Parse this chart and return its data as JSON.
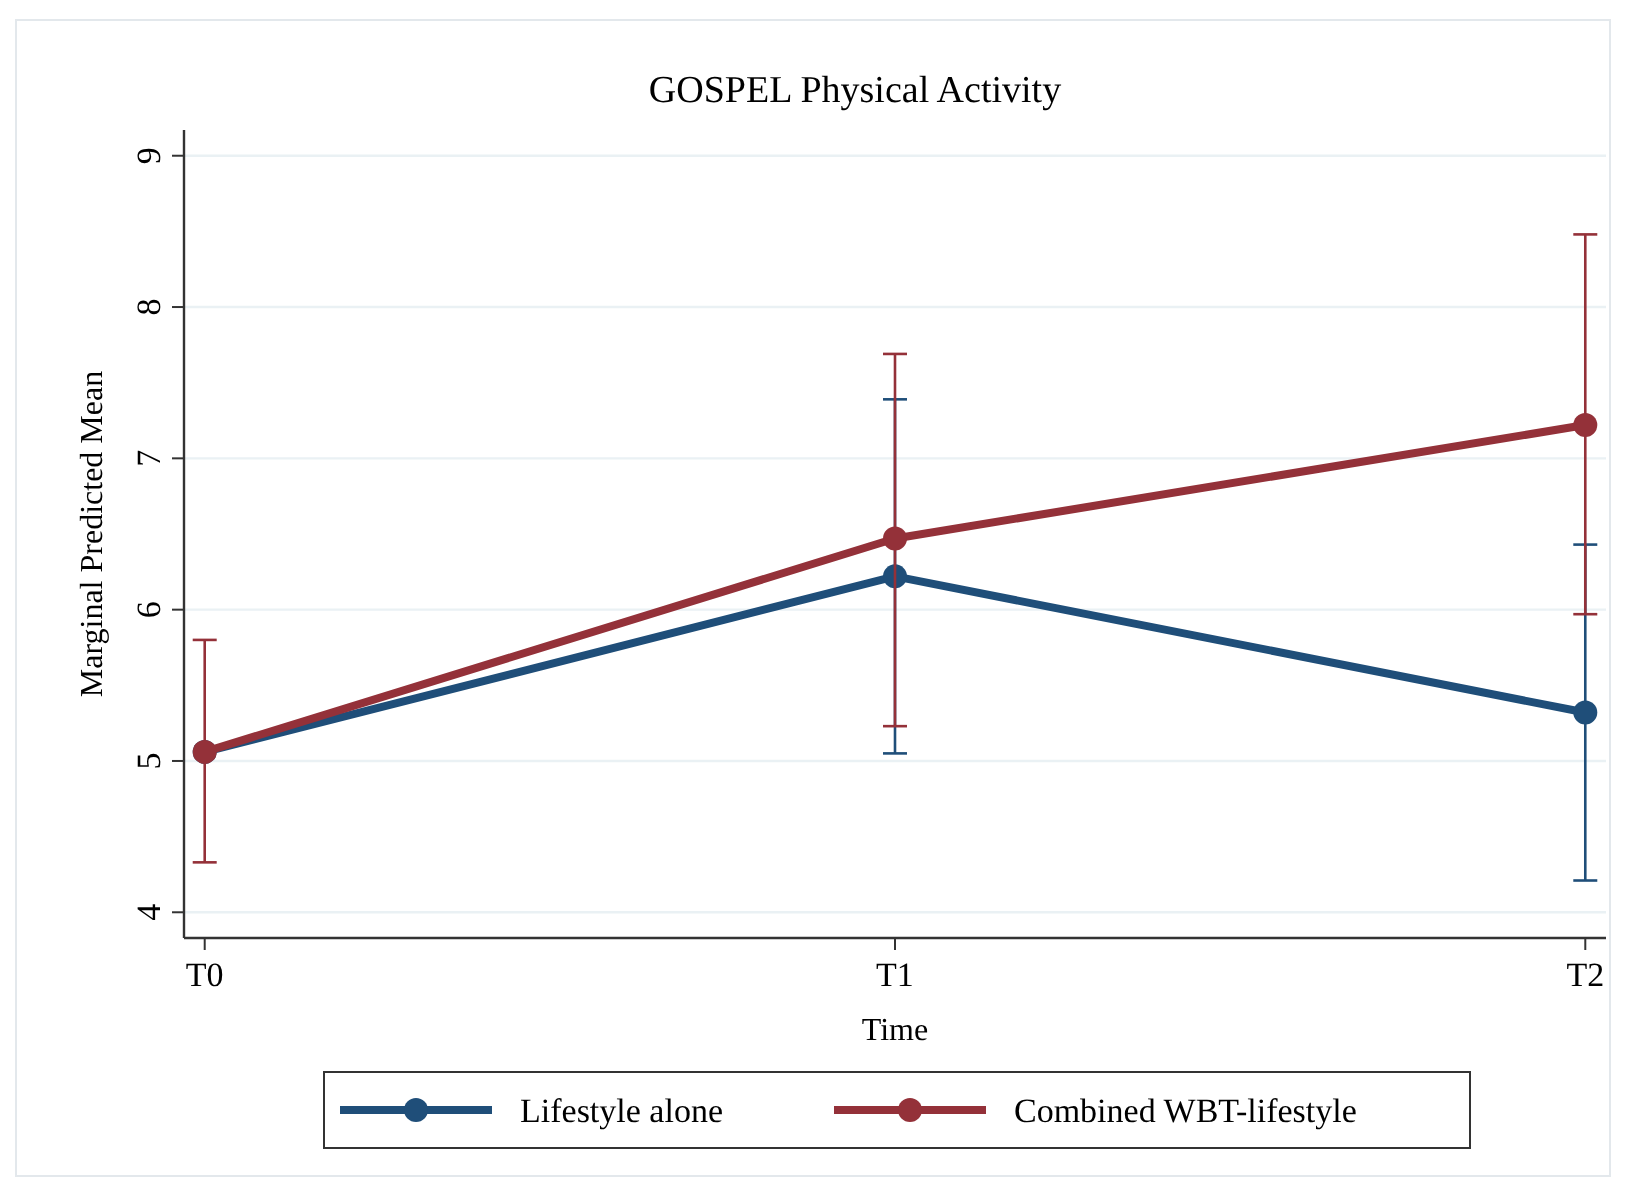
{
  "chart_data": {
    "type": "line",
    "title": "GOSPEL Physical Activity",
    "xlabel": "Time",
    "ylabel": "Marginal Predicted Mean",
    "categories": [
      "T0",
      "T1",
      "T2"
    ],
    "ylim": [
      3.83,
      9.17
    ],
    "yticks": [
      4,
      5,
      6,
      7,
      8,
      9
    ],
    "grid": "y",
    "legend": "bottom",
    "marker": "circle",
    "line_style": "solid",
    "series": [
      {
        "name": "Lifestyle alone",
        "color": "#1f4e79",
        "values": [
          5.06,
          6.22,
          5.32
        ],
        "errors": [
          null,
          [
            5.05,
            7.39
          ],
          [
            4.21,
            6.43
          ]
        ]
      },
      {
        "name": "Combined WBT-lifestyle",
        "color": "#943139",
        "values": [
          5.06,
          6.47,
          7.22
        ],
        "errors": [
          [
            4.33,
            5.8
          ],
          [
            5.23,
            7.69
          ],
          [
            5.97,
            8.48
          ]
        ]
      }
    ]
  }
}
